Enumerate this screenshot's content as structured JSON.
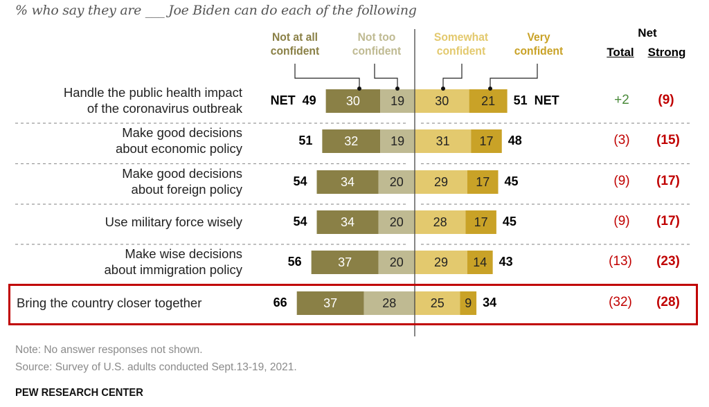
{
  "subtitle": "% who say they are ___ Joe Biden can do each of the following",
  "legend": {
    "not_at_all": "Not at all confident",
    "not_too": "Not too confident",
    "somewhat": "Somewhat confident",
    "very": "Very confident"
  },
  "net_header": {
    "top": "Net",
    "total": "Total",
    "strong": "Strong"
  },
  "net_prefix": "NET",
  "colors": {
    "not_at_all": "#8a8046",
    "not_too": "#bfba92",
    "somewhat": "#e3c96e",
    "very": "#c9a227",
    "net_positive": "#4a8a3a",
    "net_negative": "#c00000",
    "highlight": "#c00000"
  },
  "footer": {
    "note": "Note: No answer responses not shown.",
    "source": "Source: Survey of U.S. adults conducted Sept.13-19, 2021.",
    "brand": "PEW RESEARCH CENTER"
  },
  "chart_data": {
    "type": "bar",
    "subtype": "diverging-stacked-horizontal",
    "title": "% who say they are ___ Joe Biden can do each of the following",
    "categories": [
      "Handle the public health impact of the coronavirus outbreak",
      "Make good decisions about economic policy",
      "Make good decisions about foreign policy",
      "Use military force wisely",
      "Make wise decisions about immigration policy",
      "Bring the country closer together"
    ],
    "category_lines": [
      [
        "Handle the public health impact",
        "of the coronavirus outbreak"
      ],
      [
        "Make good decisions",
        "about economic policy"
      ],
      [
        "Make good decisions",
        "about foreign policy"
      ],
      [
        "Use military force wisely"
      ],
      [
        "Make wise decisions",
        "about immigration policy"
      ],
      [
        "Bring the country closer together"
      ]
    ],
    "series": [
      {
        "name": "Not at all confident",
        "side": "negative",
        "values": [
          30,
          32,
          34,
          34,
          37,
          37
        ]
      },
      {
        "name": "Not too confident",
        "side": "negative",
        "values": [
          19,
          19,
          20,
          20,
          20,
          28
        ]
      },
      {
        "name": "Somewhat confident",
        "side": "positive",
        "values": [
          30,
          31,
          29,
          28,
          29,
          25
        ]
      },
      {
        "name": "Very confident",
        "side": "positive",
        "values": [
          21,
          17,
          17,
          17,
          14,
          9
        ]
      }
    ],
    "net_not_confident": [
      49,
      51,
      54,
      54,
      56,
      66
    ],
    "net_confident": [
      51,
      48,
      45,
      45,
      43,
      34
    ],
    "net_total": [
      "+2",
      "(3)",
      "(9)",
      "(9)",
      "(13)",
      "(32)"
    ],
    "net_strong": [
      "(9)",
      "(15)",
      "(17)",
      "(17)",
      "(23)",
      "(28)"
    ],
    "highlighted_category": "Bring the country closer together",
    "xlim": [
      -70,
      70
    ]
  }
}
